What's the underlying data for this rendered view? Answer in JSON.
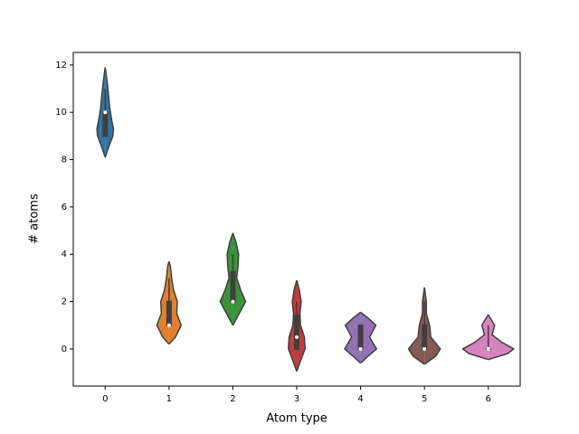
{
  "chart_data": {
    "type": "violin",
    "xlabel": "Atom type",
    "ylabel": "# atoms",
    "categories": [
      "0",
      "1",
      "2",
      "3",
      "4",
      "5",
      "6"
    ],
    "xlim": [
      -0.5,
      6.5
    ],
    "ylim": [
      -1.57,
      12.53
    ],
    "yticks": [
      0,
      2,
      4,
      6,
      8,
      10,
      12
    ],
    "violins": [
      {
        "color": "#3274a1",
        "y": [
          8.1,
          8.5,
          9.0,
          9.3,
          9.7,
          10.2,
          10.8,
          11.3,
          11.9
        ],
        "width": [
          0,
          0.05,
          0.12,
          0.13,
          0.1,
          0.07,
          0.05,
          0.03,
          0
        ],
        "q1": 9,
        "median": 10,
        "q3": 10,
        "whisker_low": 9,
        "whisker_high": 11
      },
      {
        "color": "#e1812c",
        "y": [
          0.2,
          0.5,
          1.0,
          1.5,
          2.0,
          2.5,
          3.0,
          3.5,
          3.7
        ],
        "width": [
          0,
          0.1,
          0.19,
          0.12,
          0.13,
          0.07,
          0.04,
          0.02,
          0
        ],
        "q1": 1,
        "median": 1,
        "q3": 2,
        "whisker_low": 1,
        "whisker_high": 3
      },
      {
        "color": "#3a923a",
        "y": [
          1.0,
          1.4,
          2.0,
          2.5,
          3.0,
          3.5,
          4.0,
          4.5,
          4.9
        ],
        "width": [
          0,
          0.08,
          0.2,
          0.12,
          0.06,
          0.08,
          0.09,
          0.05,
          0
        ],
        "q1": 2,
        "median": 2,
        "q3": 3.25,
        "whisker_low": 2,
        "whisker_high": 4
      },
      {
        "color": "#c03d3e",
        "y": [
          -0.95,
          -0.5,
          0,
          0.5,
          1.0,
          1.5,
          2.0,
          2.5,
          2.9
        ],
        "width": [
          0,
          0.06,
          0.13,
          0.12,
          0.06,
          0.05,
          0.07,
          0.04,
          0
        ],
        "q1": 0,
        "median": 0.5,
        "q3": 1.4,
        "whisker_low": 0,
        "whisker_high": 2
      },
      {
        "color": "#9372b2",
        "y": [
          -0.6,
          -0.3,
          0,
          0.5,
          1.0,
          1.3,
          1.55
        ],
        "width": [
          0,
          0.12,
          0.25,
          0.14,
          0.24,
          0.12,
          0
        ],
        "q1": 0,
        "median": 0,
        "q3": 1,
        "whisker_low": 0,
        "whisker_high": 1
      },
      {
        "color": "#845b53",
        "y": [
          -0.65,
          -0.3,
          0,
          0.5,
          1.0,
          1.5,
          2.0,
          2.6
        ],
        "width": [
          0,
          0.18,
          0.25,
          0.1,
          0.08,
          0.03,
          0.03,
          0
        ],
        "q1": 0,
        "median": 0,
        "q3": 1,
        "whisker_low": 0,
        "whisker_high": 2
      },
      {
        "color": "#d684bd",
        "y": [
          -0.45,
          -0.2,
          0,
          0.3,
          0.6,
          1.0,
          1.45
        ],
        "width": [
          0,
          0.3,
          0.4,
          0.2,
          0.06,
          0.1,
          0
        ],
        "q1": 0,
        "median": 0,
        "q3": 0,
        "whisker_low": 0,
        "whisker_high": 1
      }
    ]
  }
}
